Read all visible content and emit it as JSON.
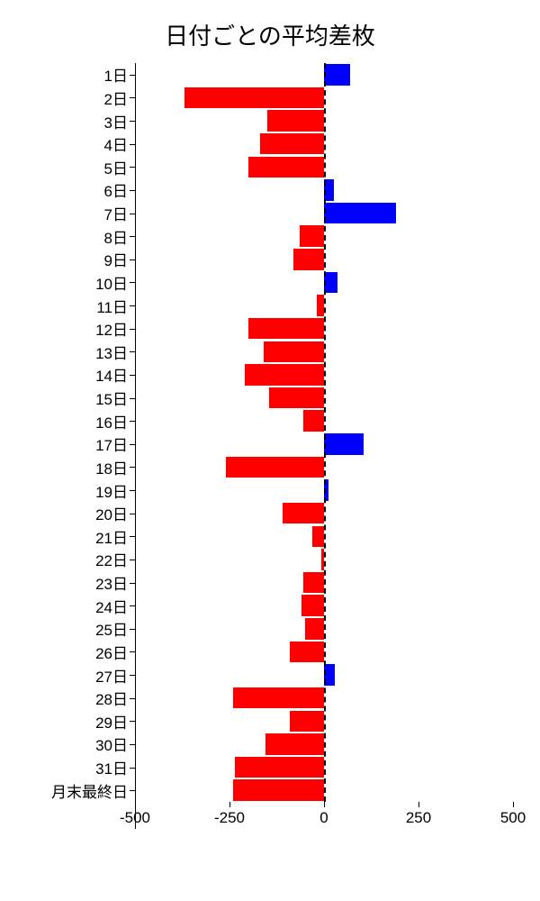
{
  "chart": {
    "type": "bar",
    "orientation": "horizontal",
    "title": "日付ごとの平均差枚",
    "title_fontsize": 26,
    "background_color": "#ffffff",
    "text_color": "#000000",
    "label_fontsize": 17,
    "x_axis": {
      "min": -500,
      "max": 500,
      "ticks": [
        -500,
        -250,
        0,
        250,
        500
      ],
      "tick_labels": [
        "-500",
        "-250",
        "0",
        "250",
        "500"
      ]
    },
    "zero_line": {
      "value": 0,
      "style": "dashed",
      "color": "#000000",
      "width": 2
    },
    "positive_color": "#0000ff",
    "negative_color": "#ff0000",
    "bar_gap_ratio": 0.08,
    "data": [
      {
        "label": "1日",
        "value": 70
      },
      {
        "label": "2日",
        "value": -370
      },
      {
        "label": "3日",
        "value": -150
      },
      {
        "label": "4日",
        "value": -170
      },
      {
        "label": "5日",
        "value": -200
      },
      {
        "label": "6日",
        "value": 25
      },
      {
        "label": "7日",
        "value": 190
      },
      {
        "label": "8日",
        "value": -65
      },
      {
        "label": "9日",
        "value": -80
      },
      {
        "label": "10日",
        "value": 35
      },
      {
        "label": "11日",
        "value": -20
      },
      {
        "label": "12日",
        "value": -200
      },
      {
        "label": "13日",
        "value": -160
      },
      {
        "label": "14日",
        "value": -210
      },
      {
        "label": "15日",
        "value": -145
      },
      {
        "label": "16日",
        "value": -55
      },
      {
        "label": "17日",
        "value": 105
      },
      {
        "label": "18日",
        "value": -260
      },
      {
        "label": "19日",
        "value": 12
      },
      {
        "label": "20日",
        "value": -110
      },
      {
        "label": "21日",
        "value": -30
      },
      {
        "label": "22日",
        "value": -8
      },
      {
        "label": "23日",
        "value": -55
      },
      {
        "label": "24日",
        "value": -60
      },
      {
        "label": "25日",
        "value": -50
      },
      {
        "label": "26日",
        "value": -90
      },
      {
        "label": "27日",
        "value": 28
      },
      {
        "label": "28日",
        "value": -240
      },
      {
        "label": "29日",
        "value": -90
      },
      {
        "label": "30日",
        "value": -155
      },
      {
        "label": "31日",
        "value": -235
      },
      {
        "label": "月末最終日",
        "value": -240
      }
    ]
  }
}
